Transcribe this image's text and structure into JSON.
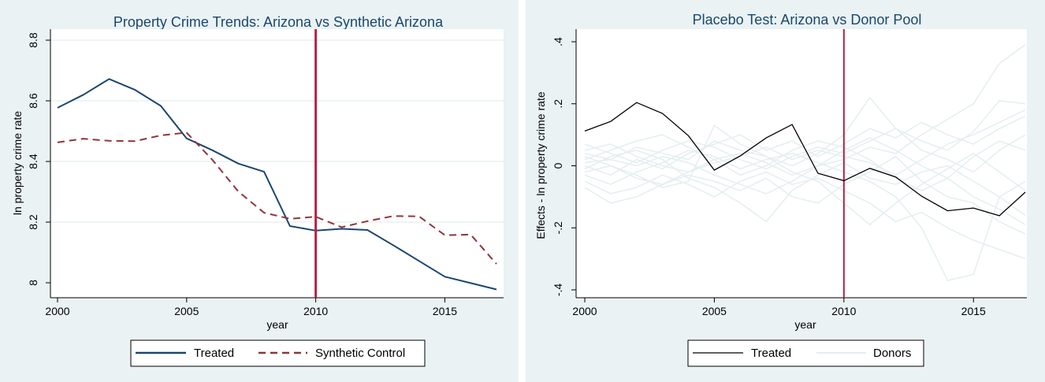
{
  "chart_data": [
    {
      "type": "line",
      "title": "Property Crime Trends: Arizona vs Synthetic Arizona",
      "xlabel": "year",
      "ylabel": "ln property crime rate",
      "xlim": [
        2000,
        2017
      ],
      "ylim": [
        8.0,
        8.8
      ],
      "xticks": [
        "2000",
        "2005",
        "2010",
        "2015"
      ],
      "yticks": [
        "8",
        "8.2",
        "8.4",
        "8.6",
        "8.8"
      ],
      "grid": true,
      "treatment_line": 2010,
      "legend_position": "bottom",
      "x": [
        2000,
        2001,
        2002,
        2003,
        2004,
        2005,
        2006,
        2007,
        2008,
        2009,
        2010,
        2011,
        2012,
        2013,
        2014,
        2015,
        2016,
        2017
      ],
      "series": [
        {
          "name": "Treated",
          "style": "solid",
          "color": "#1a476f",
          "values": [
            8.577,
            8.62,
            8.672,
            8.636,
            8.583,
            8.476,
            8.437,
            8.393,
            8.366,
            8.187,
            8.172,
            8.178,
            8.174,
            8.124,
            8.072,
            8.02,
            7.999,
            7.978
          ]
        },
        {
          "name": "Synthetic Control",
          "style": "dashed",
          "color": "#90353b",
          "values": [
            8.463,
            8.475,
            8.468,
            8.467,
            8.486,
            8.495,
            8.405,
            8.301,
            8.231,
            8.211,
            8.218,
            8.183,
            8.203,
            8.22,
            8.219,
            8.157,
            8.159,
            8.062
          ]
        }
      ]
    },
    {
      "type": "line",
      "title": "Placebo Test: Arizona vs Donor Pool",
      "xlabel": "year",
      "ylabel": "Effects - ln property crime rate",
      "xlim": [
        2000,
        2017
      ],
      "ylim": [
        -0.4,
        0.4
      ],
      "xticks": [
        "2000",
        "2005",
        "2010",
        "2015"
      ],
      "yticks": [
        "-.4",
        "-.2",
        "0",
        ".2",
        ".4"
      ],
      "grid": false,
      "treatment_line": 2010,
      "legend_position": "bottom",
      "x": [
        2000,
        2001,
        2002,
        2003,
        2004,
        2005,
        2006,
        2007,
        2008,
        2009,
        2010,
        2011,
        2012,
        2013,
        2014,
        2015,
        2016,
        2017
      ],
      "series": [
        {
          "name": "Treated",
          "color": "#000000",
          "values": [
            0.112,
            0.143,
            0.204,
            0.169,
            0.097,
            -0.014,
            0.032,
            0.09,
            0.133,
            -0.024,
            -0.048,
            -0.008,
            -0.036,
            -0.098,
            -0.145,
            -0.136,
            -0.161,
            -0.085
          ]
        },
        {
          "name": "Donors",
          "color": "#e4eef0",
          "values": [
            [
              0.05,
              0.07,
              0.03,
              0.0,
              -0.02,
              0.02,
              0.04,
              0.01,
              -0.03,
              0.0,
              0.02,
              0.06,
              0.04,
              0.1,
              0.15,
              0.2,
              0.33,
              0.39
            ],
            [
              -0.03,
              -0.06,
              -0.02,
              0.01,
              0.05,
              0.03,
              -0.01,
              0.02,
              0.04,
              0.01,
              -0.02,
              -0.05,
              -0.1,
              -0.2,
              -0.37,
              -0.35,
              -0.1,
              -0.05
            ],
            [
              0.01,
              0.02,
              0.06,
              0.04,
              0.02,
              0.08,
              0.05,
              0.03,
              0.0,
              0.04,
              0.1,
              0.22,
              0.12,
              0.08,
              0.05,
              0.11,
              0.21,
              0.2
            ],
            [
              -0.05,
              -0.09,
              -0.07,
              -0.03,
              -0.06,
              -0.1,
              -0.05,
              -0.02,
              -0.06,
              -0.04,
              -0.08,
              -0.12,
              -0.18,
              -0.15,
              -0.2,
              -0.24,
              -0.27,
              -0.3
            ],
            [
              0.03,
              0.0,
              -0.04,
              -0.06,
              -0.02,
              0.01,
              0.03,
              0.06,
              0.02,
              0.05,
              0.03,
              0.01,
              -0.03,
              0.02,
              0.07,
              0.1,
              0.14,
              0.18
            ],
            [
              -0.01,
              0.03,
              0.05,
              0.02,
              -0.04,
              -0.07,
              -0.12,
              -0.18,
              -0.08,
              -0.03,
              0.01,
              -0.04,
              -0.06,
              -0.02,
              0.0,
              -0.05,
              -0.1,
              -0.16
            ],
            [
              0.07,
              0.04,
              0.01,
              0.05,
              0.08,
              0.06,
              0.02,
              -0.01,
              0.03,
              0.06,
              0.04,
              0.08,
              0.12,
              0.05,
              0.02,
              -0.02,
              0.05,
              0.1
            ],
            [
              -0.07,
              -0.12,
              -0.1,
              -0.06,
              -0.03,
              -0.05,
              -0.08,
              -0.04,
              -0.1,
              -0.12,
              -0.06,
              -0.02,
              0.03,
              -0.05,
              -0.1,
              -0.12,
              -0.18,
              -0.22
            ],
            [
              0.02,
              0.05,
              0.08,
              0.1,
              0.06,
              0.02,
              -0.03,
              0.0,
              0.05,
              0.08,
              0.06,
              0.02,
              -0.04,
              -0.08,
              -0.04,
              0.03,
              0.08,
              0.05
            ],
            [
              -0.02,
              0.0,
              -0.03,
              -0.07,
              -0.05,
              0.13,
              0.07,
              0.03,
              -0.02,
              -0.05,
              -0.12,
              -0.19,
              -0.12,
              -0.06,
              -0.01,
              0.04,
              -0.02,
              -0.08
            ],
            [
              0.04,
              0.02,
              0.0,
              0.03,
              0.01,
              -0.03,
              -0.06,
              -0.09,
              -0.05,
              0.0,
              0.05,
              0.09,
              0.05,
              0.0,
              -0.04,
              -0.1,
              -0.14,
              -0.19
            ],
            [
              0.0,
              -0.03,
              0.02,
              -0.01,
              0.04,
              0.07,
              0.1,
              0.05,
              0.08,
              0.03,
              0.07,
              0.12,
              0.09,
              0.14,
              0.1,
              0.07,
              0.12,
              0.16
            ]
          ]
        }
      ]
    }
  ]
}
